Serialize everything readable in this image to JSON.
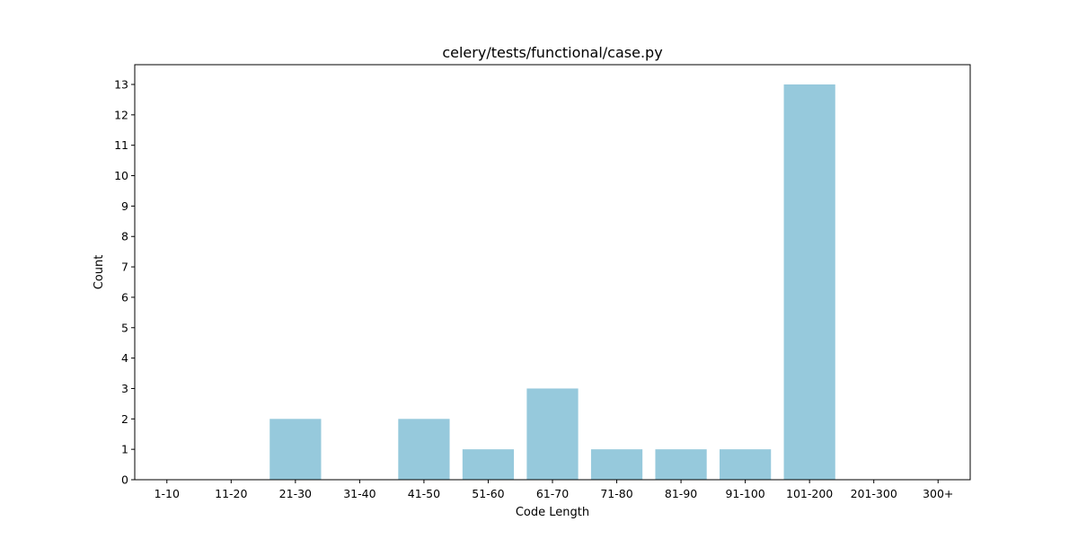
{
  "chart_data": {
    "type": "bar",
    "title": "celery/tests/functional/case.py",
    "xlabel": "Code Length",
    "ylabel": "Count",
    "categories": [
      "1-10",
      "11-20",
      "21-30",
      "31-40",
      "41-50",
      "51-60",
      "61-70",
      "71-80",
      "81-90",
      "91-100",
      "101-200",
      "201-300",
      "300+"
    ],
    "values": [
      0,
      0,
      2,
      0,
      2,
      1,
      3,
      1,
      1,
      1,
      13,
      0,
      0
    ],
    "ylim": [
      0,
      13.65
    ],
    "yticks": [
      "0",
      "1",
      "2",
      "3",
      "4",
      "5",
      "6",
      "7",
      "8",
      "9",
      "10",
      "11",
      "12",
      "13"
    ],
    "bar_color": "#96c9dc",
    "grid": false,
    "legend": "none"
  }
}
